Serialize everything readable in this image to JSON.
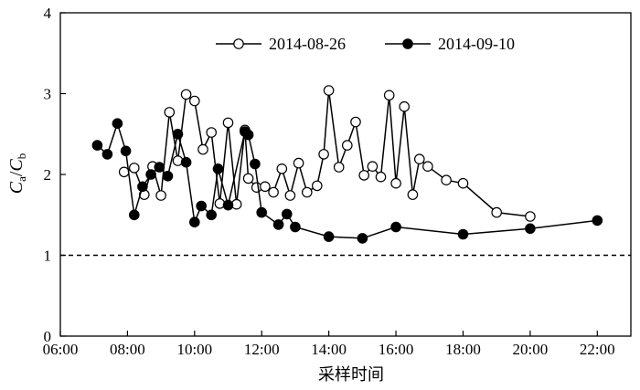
{
  "chart_data": {
    "type": "line",
    "xlabel": "采样时间",
    "ylabel": {
      "main": "C",
      "sub_a": "a",
      "slash": "/",
      "main2": "C",
      "sub_b": "b"
    },
    "ylim": [
      0,
      4
    ],
    "yticks": [
      "0",
      "1",
      "2",
      "3",
      "4"
    ],
    "xticks": [
      "06:00",
      "08:00",
      "10:00",
      "12:00",
      "14:00",
      "16:00",
      "18:00",
      "20:00",
      "22:00"
    ],
    "xlim_hours": [
      6,
      23
    ],
    "reference_line": {
      "y": 1,
      "style": "dashed"
    },
    "legend_position": "top-right",
    "series": [
      {
        "name": "2014-08-26",
        "marker": "open-circle",
        "points": [
          [
            7.9,
            2.03
          ],
          [
            8.2,
            2.08
          ],
          [
            8.5,
            1.75
          ],
          [
            8.75,
            2.1
          ],
          [
            9.0,
            1.74
          ],
          [
            9.25,
            2.77
          ],
          [
            9.5,
            2.17
          ],
          [
            9.75,
            2.99
          ],
          [
            10.0,
            2.91
          ],
          [
            10.25,
            2.31
          ],
          [
            10.5,
            2.52
          ],
          [
            10.75,
            1.64
          ],
          [
            11.0,
            2.64
          ],
          [
            11.25,
            1.63
          ],
          [
            11.5,
            2.55
          ],
          [
            11.6,
            1.95
          ],
          [
            11.85,
            1.84
          ],
          [
            12.1,
            1.85
          ],
          [
            12.35,
            1.78
          ],
          [
            12.6,
            2.07
          ],
          [
            12.85,
            1.74
          ],
          [
            13.1,
            2.14
          ],
          [
            13.35,
            1.78
          ],
          [
            13.65,
            1.86
          ],
          [
            13.85,
            2.25
          ],
          [
            14.0,
            3.04
          ],
          [
            14.3,
            2.09
          ],
          [
            14.55,
            2.36
          ],
          [
            14.8,
            2.65
          ],
          [
            15.05,
            1.99
          ],
          [
            15.3,
            2.1
          ],
          [
            15.55,
            1.97
          ],
          [
            15.8,
            2.98
          ],
          [
            16.0,
            1.89
          ],
          [
            16.25,
            2.84
          ],
          [
            16.5,
            1.75
          ],
          [
            16.7,
            2.19
          ],
          [
            16.95,
            2.1
          ],
          [
            17.5,
            1.93
          ],
          [
            18.0,
            1.89
          ],
          [
            19.0,
            1.53
          ],
          [
            20.0,
            1.48
          ]
        ]
      },
      {
        "name": "2014-09-10",
        "marker": "filled-circle",
        "points": [
          [
            7.1,
            2.36
          ],
          [
            7.4,
            2.25
          ],
          [
            7.7,
            2.63
          ],
          [
            7.95,
            2.29
          ],
          [
            8.2,
            1.5
          ],
          [
            8.45,
            1.85
          ],
          [
            8.7,
            2.0
          ],
          [
            8.95,
            2.09
          ],
          [
            9.2,
            1.98
          ],
          [
            9.5,
            2.5
          ],
          [
            9.75,
            2.15
          ],
          [
            10.0,
            1.41
          ],
          [
            10.2,
            1.61
          ],
          [
            10.5,
            1.5
          ],
          [
            10.7,
            2.07
          ],
          [
            11.0,
            1.62
          ],
          [
            11.5,
            2.53
          ],
          [
            11.6,
            2.49
          ],
          [
            11.8,
            2.13
          ],
          [
            12.0,
            1.53
          ],
          [
            12.5,
            1.38
          ],
          [
            12.75,
            1.51
          ],
          [
            13.0,
            1.35
          ],
          [
            14.0,
            1.23
          ],
          [
            15.0,
            1.21
          ],
          [
            16.0,
            1.35
          ],
          [
            18.0,
            1.26
          ],
          [
            20.0,
            1.33
          ],
          [
            22.0,
            1.43
          ]
        ]
      }
    ]
  }
}
